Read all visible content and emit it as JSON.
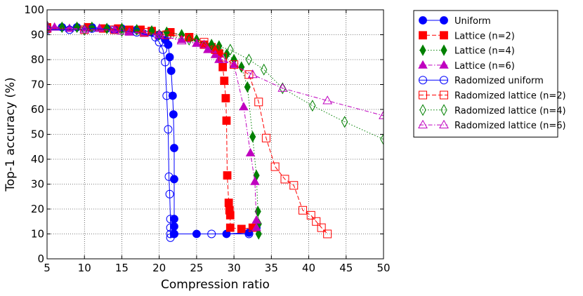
{
  "chart_data": {
    "type": "line",
    "title": "",
    "xlabel": "Compression ratio",
    "ylabel": "Top-1 accuracy (%)",
    "xlim": [
      5,
      50
    ],
    "ylim": [
      0,
      100
    ],
    "xticks": [
      5,
      10,
      15,
      20,
      25,
      30,
      35,
      40,
      45,
      50
    ],
    "yticks": [
      0,
      10,
      20,
      30,
      40,
      50,
      60,
      70,
      80,
      90,
      100
    ],
    "grid": true,
    "legend_position": "outside-right",
    "series": [
      {
        "name": "Uniform",
        "color": "#0000ff",
        "marker": "circle",
        "filled": true,
        "line": "solid",
        "points": [
          [
            5,
            93
          ],
          [
            7,
            93
          ],
          [
            9,
            93
          ],
          [
            11,
            93
          ],
          [
            13,
            92.5
          ],
          [
            15,
            92.5
          ],
          [
            17,
            92
          ],
          [
            19,
            91
          ],
          [
            20,
            90
          ],
          [
            20.8,
            88
          ],
          [
            21.2,
            86
          ],
          [
            21.4,
            81
          ],
          [
            21.6,
            75.5
          ],
          [
            21.8,
            65.5
          ],
          [
            21.9,
            58
          ],
          [
            22,
            44.5
          ],
          [
            22,
            32
          ],
          [
            22,
            16
          ],
          [
            22,
            13
          ],
          [
            22,
            10
          ],
          [
            25,
            10
          ],
          [
            29,
            10
          ],
          [
            32,
            10.5
          ],
          [
            33,
            12.5
          ]
        ]
      },
      {
        "name": "Lattice (n=2)",
        "color": "#ff0000",
        "marker": "square",
        "filled": true,
        "line": "dashed",
        "points": [
          [
            5,
            93
          ],
          [
            10.5,
            93
          ],
          [
            12.5,
            92.5
          ],
          [
            14.5,
            92.5
          ],
          [
            16,
            92
          ],
          [
            17.5,
            92
          ],
          [
            19,
            91.5
          ],
          [
            21.5,
            91
          ],
          [
            24,
            89
          ],
          [
            26,
            86
          ],
          [
            27,
            85
          ],
          [
            27.5,
            84
          ],
          [
            28,
            82.5
          ],
          [
            28.5,
            77
          ],
          [
            28.7,
            71.5
          ],
          [
            28.9,
            64.5
          ],
          [
            29,
            55.5
          ],
          [
            29.1,
            33.5
          ],
          [
            29.3,
            22.5
          ],
          [
            29.4,
            19.5
          ],
          [
            29.5,
            17.5
          ],
          [
            29.5,
            12.5
          ],
          [
            31,
            12
          ],
          [
            32.5,
            12.5
          ]
        ]
      },
      {
        "name": "Lattice (n=4)",
        "color": "#008000",
        "marker": "diamond",
        "filled": true,
        "line": "dotted",
        "points": [
          [
            5,
            93.5
          ],
          [
            7,
            93
          ],
          [
            9,
            93
          ],
          [
            11,
            93
          ],
          [
            13,
            92.5
          ],
          [
            15,
            92.5
          ],
          [
            17,
            92
          ],
          [
            19,
            91.5
          ],
          [
            21,
            91
          ],
          [
            23,
            90
          ],
          [
            25,
            88
          ],
          [
            27,
            86
          ],
          [
            28,
            85.5
          ],
          [
            29,
            82
          ],
          [
            30,
            80
          ],
          [
            31,
            77
          ],
          [
            31.8,
            69
          ],
          [
            32.5,
            49
          ],
          [
            33,
            33.5
          ],
          [
            33.2,
            19
          ],
          [
            33.3,
            14
          ],
          [
            33.3,
            10
          ]
        ]
      },
      {
        "name": "Lattice (n=6)",
        "color": "#bf00bf",
        "marker": "triangle",
        "filled": true,
        "line": "dashdot",
        "points": [
          [
            5,
            93.5
          ],
          [
            6,
            93
          ],
          [
            8,
            92.5
          ],
          [
            10,
            92.5
          ],
          [
            12,
            92.5
          ],
          [
            14,
            92
          ],
          [
            16,
            91
          ],
          [
            18,
            90.5
          ],
          [
            20,
            89.5
          ],
          [
            23,
            88
          ],
          [
            25,
            86.5
          ],
          [
            26.5,
            84
          ],
          [
            27.5,
            82
          ],
          [
            28,
            80
          ],
          [
            30,
            78
          ],
          [
            31.3,
            61
          ],
          [
            32.2,
            42.5
          ],
          [
            32.8,
            31
          ],
          [
            33,
            15.5
          ],
          [
            33,
            12.5
          ]
        ]
      },
      {
        "name": "Radomized uniform",
        "color": "#0000ff",
        "marker": "circle",
        "filled": false,
        "line": "solid",
        "points": [
          [
            5,
            92
          ],
          [
            8,
            92
          ],
          [
            11,
            92.5
          ],
          [
            14,
            92
          ],
          [
            17,
            91
          ],
          [
            19.5,
            89
          ],
          [
            20,
            87
          ],
          [
            20.5,
            84
          ],
          [
            20.8,
            79
          ],
          [
            21,
            65.5
          ],
          [
            21.2,
            52
          ],
          [
            21.3,
            33
          ],
          [
            21.4,
            26
          ],
          [
            21.5,
            16
          ],
          [
            21.5,
            12.5
          ],
          [
            21.5,
            10
          ],
          [
            21.5,
            8.5
          ],
          [
            22,
            10
          ],
          [
            27,
            10
          ],
          [
            32,
            10
          ]
        ]
      },
      {
        "name": "Radomized lattice (n=2)",
        "color": "#ff0000",
        "marker": "square",
        "filled": false,
        "line": "dashed",
        "points": [
          [
            5,
            92.5
          ],
          [
            10,
            92
          ],
          [
            14,
            92
          ],
          [
            18,
            91
          ],
          [
            21,
            90
          ],
          [
            24,
            89
          ],
          [
            26,
            87
          ],
          [
            27.5,
            84
          ],
          [
            28.5,
            81
          ],
          [
            30,
            78
          ],
          [
            32,
            74
          ],
          [
            33.3,
            63
          ],
          [
            34.3,
            48.5
          ],
          [
            35.5,
            37
          ],
          [
            36.8,
            32
          ],
          [
            38,
            29.5
          ],
          [
            39.2,
            19.5
          ],
          [
            40.3,
            17.5
          ],
          [
            41,
            15
          ],
          [
            41.7,
            12.5
          ],
          [
            42.5,
            10
          ]
        ]
      },
      {
        "name": "Radomized lattice (n=4)",
        "color": "#008000",
        "marker": "diamond",
        "filled": false,
        "line": "dotted",
        "points": [
          [
            5,
            92.5
          ],
          [
            10,
            92
          ],
          [
            15,
            91.5
          ],
          [
            20,
            90
          ],
          [
            24,
            88
          ],
          [
            27,
            86
          ],
          [
            29.5,
            84
          ],
          [
            32,
            80
          ],
          [
            34,
            76
          ],
          [
            36.5,
            68.5
          ],
          [
            40.5,
            61.5
          ],
          [
            44.8,
            55
          ],
          [
            50,
            48
          ]
        ]
      },
      {
        "name": "Radomized lattice (n=6)",
        "color": "#bf00bf",
        "marker": "triangle",
        "filled": false,
        "line": "dashdot",
        "points": [
          [
            5,
            92.5
          ],
          [
            10,
            92
          ],
          [
            15,
            91.5
          ],
          [
            20,
            90
          ],
          [
            23,
            87.5
          ],
          [
            26,
            86
          ],
          [
            28.5,
            80
          ],
          [
            32.5,
            74
          ],
          [
            36.5,
            68.5
          ],
          [
            42.5,
            63.5
          ],
          [
            50,
            57.5
          ]
        ]
      }
    ]
  }
}
